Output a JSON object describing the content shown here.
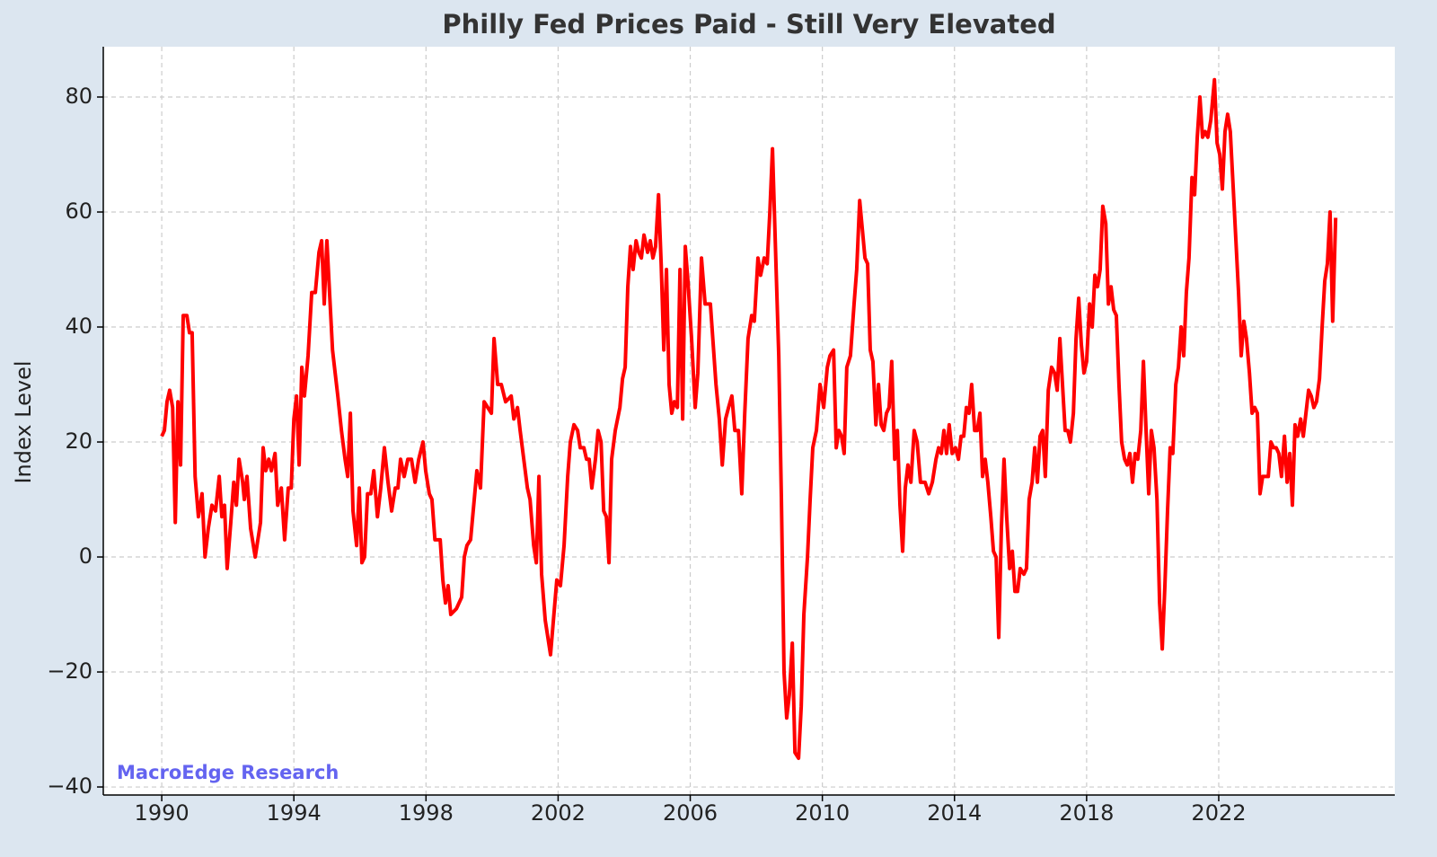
{
  "chart_data": {
    "type": "line",
    "title": "Philly Fed Prices Paid - Still Very Elevated",
    "ylabel": "Index Level",
    "annotation": "MacroEdge Research",
    "color": "#ff0000",
    "grid": true,
    "xlim": [
      1988.23,
      2027.33
    ],
    "ylim": [
      -41.4,
      88.75
    ],
    "xticks": [
      1990,
      1994,
      1998,
      2002,
      2006,
      2010,
      2014,
      2018,
      2022
    ],
    "yticks": [
      {
        "value": -40,
        "label": "−40"
      },
      {
        "value": -20,
        "label": "−20"
      },
      0,
      20,
      40,
      60,
      80
    ],
    "x": [
      1990.0,
      1990.08,
      1990.16,
      1990.24,
      1990.33,
      1990.41,
      1990.49,
      1990.57,
      1990.65,
      1990.76,
      1990.84,
      1990.92,
      1991.01,
      1991.11,
      1991.22,
      1991.31,
      1991.41,
      1991.52,
      1991.63,
      1991.74,
      1991.82,
      1991.9,
      1991.98,
      1992.09,
      1992.18,
      1992.26,
      1992.34,
      1992.45,
      1992.5,
      1992.58,
      1992.69,
      1992.83,
      1992.99,
      1993.07,
      1993.15,
      1993.24,
      1993.32,
      1993.43,
      1993.51,
      1993.62,
      1993.72,
      1993.83,
      1993.92,
      1994.0,
      1994.08,
      1994.16,
      1994.24,
      1994.32,
      1994.43,
      1994.54,
      1994.65,
      1994.76,
      1994.84,
      1994.92,
      1995.0,
      1995.08,
      1995.17,
      1995.25,
      1995.33,
      1995.44,
      1995.55,
      1995.63,
      1995.71,
      1995.79,
      1995.9,
      1995.98,
      1996.06,
      1996.14,
      1996.23,
      1996.33,
      1996.42,
      1996.53,
      1996.63,
      1996.74,
      1996.85,
      1996.96,
      1997.07,
      1997.15,
      1997.23,
      1997.34,
      1997.45,
      1997.56,
      1997.67,
      1997.78,
      1997.91,
      1997.99,
      1998.1,
      1998.18,
      1998.27,
      1998.43,
      1998.51,
      1998.59,
      1998.67,
      1998.75,
      1998.92,
      1999.08,
      1999.16,
      1999.24,
      1999.35,
      1999.54,
      1999.65,
      1999.76,
      1999.87,
      1999.98,
      2000.06,
      2000.17,
      2000.28,
      2000.41,
      2000.58,
      2000.66,
      2000.77,
      2000.85,
      2000.96,
      2001.07,
      2001.15,
      2001.26,
      2001.34,
      2001.42,
      2001.5,
      2001.61,
      2001.77,
      2001.96,
      2002.07,
      2002.18,
      2002.29,
      2002.37,
      2002.48,
      2002.59,
      2002.67,
      2002.78,
      2002.86,
      2002.94,
      2003.02,
      2003.13,
      2003.21,
      2003.3,
      2003.38,
      2003.46,
      2003.54,
      2003.62,
      2003.73,
      2003.87,
      2003.95,
      2004.03,
      2004.11,
      2004.19,
      2004.27,
      2004.36,
      2004.44,
      2004.52,
      2004.6,
      2004.71,
      2004.79,
      2004.87,
      2004.95,
      2005.04,
      2005.12,
      2005.2,
      2005.28,
      2005.36,
      2005.44,
      2005.52,
      2005.61,
      2005.69,
      2005.77,
      2005.85,
      2005.93,
      2006.04,
      2006.15,
      2006.23,
      2006.34,
      2006.45,
      2006.61,
      2006.78,
      2006.88,
      2006.97,
      2007.07,
      2007.16,
      2007.26,
      2007.35,
      2007.46,
      2007.56,
      2007.65,
      2007.75,
      2007.86,
      2007.94,
      2008.05,
      2008.13,
      2008.24,
      2008.33,
      2008.41,
      2008.49,
      2008.6,
      2008.68,
      2008.76,
      2008.84,
      2008.92,
      2009.0,
      2009.09,
      2009.17,
      2009.28,
      2009.36,
      2009.44,
      2009.55,
      2009.63,
      2009.71,
      2009.82,
      2009.93,
      2010.04,
      2010.15,
      2010.23,
      2010.34,
      2010.42,
      2010.5,
      2010.58,
      2010.66,
      2010.74,
      2010.85,
      2010.96,
      2011.04,
      2011.13,
      2011.21,
      2011.29,
      2011.37,
      2011.45,
      2011.53,
      2011.62,
      2011.7,
      2011.78,
      2011.86,
      2011.94,
      2012.02,
      2012.1,
      2012.19,
      2012.27,
      2012.35,
      2012.43,
      2012.51,
      2012.59,
      2012.68,
      2012.78,
      2012.87,
      2012.97,
      2013.11,
      2013.22,
      2013.33,
      2013.44,
      2013.52,
      2013.6,
      2013.68,
      2013.76,
      2013.84,
      2013.93,
      2014.03,
      2014.12,
      2014.2,
      2014.28,
      2014.36,
      2014.44,
      2014.52,
      2014.61,
      2014.69,
      2014.77,
      2014.85,
      2014.93,
      2015.01,
      2015.1,
      2015.18,
      2015.26,
      2015.34,
      2015.42,
      2015.5,
      2015.58,
      2015.67,
      2015.75,
      2015.83,
      2015.91,
      2015.99,
      2016.1,
      2016.18,
      2016.26,
      2016.35,
      2016.43,
      2016.51,
      2016.59,
      2016.67,
      2016.75,
      2016.84,
      2016.94,
      2017.03,
      2017.11,
      2017.19,
      2017.27,
      2017.35,
      2017.43,
      2017.51,
      2017.6,
      2017.68,
      2017.76,
      2017.84,
      2017.92,
      2018.0,
      2018.09,
      2018.17,
      2018.25,
      2018.33,
      2018.41,
      2018.49,
      2018.58,
      2018.66,
      2018.74,
      2018.82,
      2018.9,
      2018.98,
      2019.06,
      2019.15,
      2019.23,
      2019.31,
      2019.39,
      2019.47,
      2019.55,
      2019.64,
      2019.72,
      2019.8,
      2019.88,
      2019.96,
      2020.04,
      2020.13,
      2020.21,
      2020.29,
      2020.37,
      2020.45,
      2020.53,
      2020.61,
      2020.7,
      2020.78,
      2020.86,
      2020.94,
      2021.02,
      2021.1,
      2021.19,
      2021.27,
      2021.35,
      2021.43,
      2021.51,
      2021.59,
      2021.67,
      2021.76,
      2021.87,
      2021.95,
      2022.03,
      2022.11,
      2022.19,
      2022.27,
      2022.35,
      2022.44,
      2022.52,
      2022.6,
      2022.68,
      2022.76,
      2022.84,
      2022.93,
      2023.01,
      2023.09,
      2023.17,
      2023.25,
      2023.33,
      2023.41,
      2023.5,
      2023.58,
      2023.66,
      2023.74,
      2023.82,
      2023.9,
      2023.99,
      2024.07,
      2024.15,
      2024.23,
      2024.31,
      2024.39,
      2024.48,
      2024.56,
      2024.64,
      2024.72,
      2024.8,
      2024.88,
      2024.96,
      2025.05,
      2025.13,
      2025.21,
      2025.29,
      2025.37,
      2025.45,
      2025.54
    ],
    "values": [
      21,
      22,
      27,
      29,
      26,
      6,
      27,
      16,
      42,
      42,
      39,
      39,
      14,
      7,
      11,
      0,
      5,
      9,
      8,
      14,
      7,
      9,
      -2,
      6,
      13,
      9,
      17,
      13,
      10,
      14,
      5,
      0,
      6,
      19,
      15,
      17,
      15,
      18,
      9,
      12,
      3,
      12,
      12,
      24,
      28,
      16,
      33,
      28,
      35,
      46,
      46,
      53,
      55,
      44,
      55,
      46,
      36,
      32,
      28,
      22,
      17,
      14,
      25,
      8,
      2,
      12,
      -1,
      0,
      11,
      11,
      15,
      7,
      12,
      19,
      13,
      8,
      12,
      12,
      17,
      14,
      17,
      17,
      13,
      17,
      20,
      15,
      11,
      10,
      3,
      3,
      -4,
      -8,
      -5,
      -10,
      -9,
      -7,
      0,
      2,
      3,
      15,
      12,
      27,
      26,
      25,
      38,
      30,
      30,
      27,
      28,
      24,
      26,
      22,
      17,
      12,
      10,
      2,
      -1,
      14,
      -3,
      -11,
      -17,
      -4,
      -5,
      2,
      14,
      20,
      23,
      22,
      19,
      19,
      17,
      17,
      12,
      17,
      22,
      20,
      8,
      7,
      -1,
      17,
      22,
      26,
      31,
      33,
      47,
      54,
      50,
      55,
      53,
      52,
      56,
      53,
      55,
      52,
      54,
      63,
      51,
      36,
      50,
      30,
      25,
      27,
      26,
      50,
      24,
      54,
      48,
      38,
      26,
      32,
      52,
      44,
      44,
      30,
      24,
      16,
      24,
      26,
      28,
      22,
      22,
      11,
      25,
      38,
      42,
      41,
      52,
      49,
      52,
      51,
      60,
      71,
      50,
      35,
      10,
      -20,
      -28,
      -24,
      -15,
      -34,
      -35,
      -26,
      -10,
      0,
      10,
      19,
      22,
      30,
      26,
      33,
      35,
      36,
      19,
      22,
      21,
      18,
      33,
      35,
      44,
      50,
      62,
      57,
      52,
      51,
      36,
      34,
      23,
      30,
      23,
      22,
      25,
      26,
      34,
      17,
      22,
      9,
      1,
      12,
      16,
      13,
      22,
      20,
      13,
      13,
      11,
      13,
      17,
      19,
      18,
      22,
      18,
      23,
      18,
      19,
      17,
      21,
      21,
      26,
      25,
      30,
      22,
      22,
      25,
      14,
      17,
      13,
      7,
      1,
      0,
      -14,
      5,
      17,
      7,
      -2,
      1,
      -6,
      -6,
      -2,
      -3,
      -2,
      10,
      13,
      19,
      13,
      21,
      22,
      14,
      29,
      33,
      32,
      29,
      38,
      30,
      22,
      22,
      20,
      25,
      38,
      45,
      37,
      32,
      34,
      44,
      40,
      49,
      47,
      50,
      61,
      58,
      44,
      47,
      43,
      42,
      30,
      20,
      17,
      16,
      18,
      13,
      18,
      17,
      22,
      34,
      22,
      11,
      22,
      19,
      10,
      -8,
      -16,
      -5,
      8,
      19,
      18,
      30,
      33,
      40,
      35,
      46,
      52,
      66,
      63,
      73,
      80,
      73,
      74,
      73,
      76,
      83,
      72,
      70,
      64,
      74,
      77,
      74,
      64,
      55,
      46,
      35,
      41,
      38,
      32,
      25,
      26,
      25,
      11,
      14,
      14,
      14,
      20,
      19,
      19,
      18,
      14,
      21,
      13,
      18,
      9,
      23,
      21,
      24,
      21,
      25,
      29,
      28,
      26,
      27,
      31,
      40,
      48,
      51,
      60,
      41,
      59
    ]
  }
}
